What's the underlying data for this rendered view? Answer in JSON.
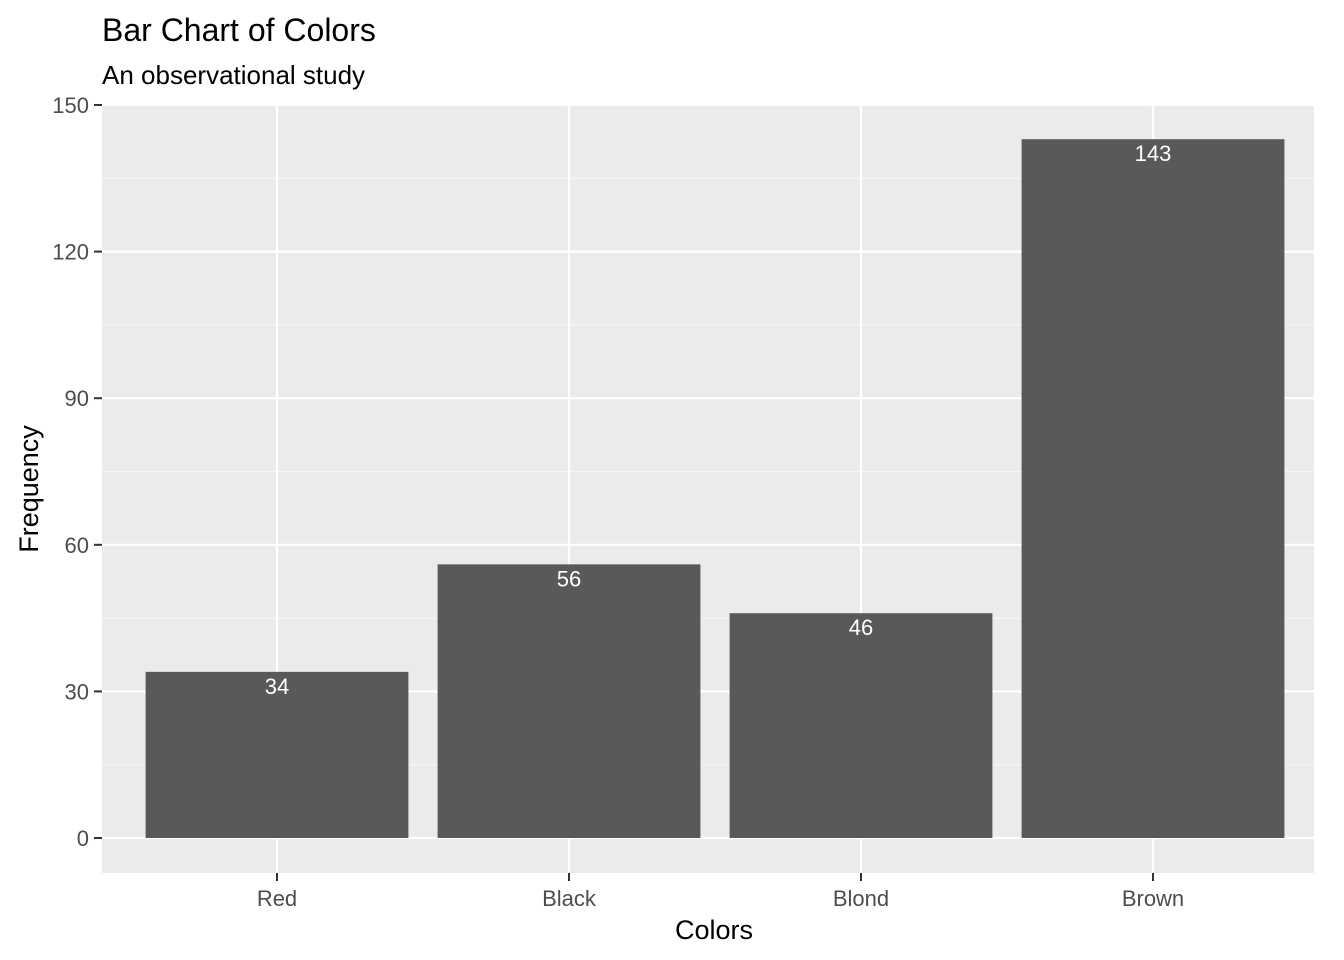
{
  "chart_data": {
    "type": "bar",
    "title": "Bar Chart of Colors",
    "subtitle": "An observational study",
    "xlabel": "Colors",
    "ylabel": "Frequency",
    "categories": [
      "Red",
      "Black",
      "Blond",
      "Brown"
    ],
    "values": [
      34,
      56,
      46,
      143
    ],
    "data_labels": [
      "34",
      "56",
      "46",
      "143"
    ],
    "ylim": [
      -7,
      150
    ],
    "yticks": [
      0,
      30,
      60,
      90,
      120,
      150
    ],
    "ytick_labels": [
      "0",
      "30",
      "60",
      "90",
      "120",
      "150"
    ],
    "grid": true,
    "legend": "none",
    "colors": {
      "bar": "#595959",
      "panel_background": "#ebebeb",
      "grid_major": "#ffffff",
      "grid_minor": "#f5f5f5",
      "tick_mark": "#333333",
      "data_label": "#ffffff"
    }
  }
}
